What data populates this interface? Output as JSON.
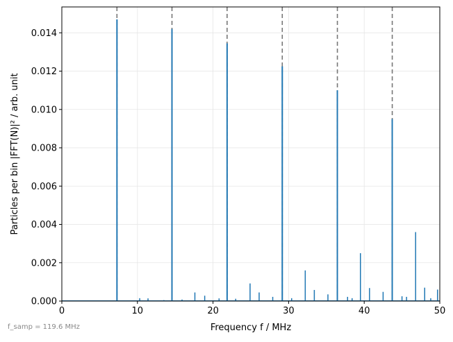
{
  "chart_data": {
    "type": "bar",
    "xlabel": "Frequency   f / MHz",
    "ylabel": "Particles per bin   |FFT(N)|² / arb. unit",
    "xlim": [
      0,
      50
    ],
    "ylim": [
      0,
      0.01535
    ],
    "xticks": [
      "0",
      "10",
      "20",
      "30",
      "40",
      "50"
    ],
    "yticks": [
      "0.000",
      "0.002",
      "0.004",
      "0.006",
      "0.008",
      "0.010",
      "0.012",
      "0.014"
    ],
    "grid": true,
    "footnote": "f_samp = 119.6 MHz",
    "colors": {
      "bars": "#1f77b4",
      "reference_lines": "#777777",
      "grid": "#e5e5e5"
    },
    "reference_lines_x": [
      7.29,
      14.57,
      21.86,
      29.16,
      36.45,
      43.71
    ],
    "series": [
      {
        "x": [
          7.29,
          10.3,
          11.4,
          13.5,
          14.57,
          15.9,
          17.6,
          18.9,
          20.8,
          21.86,
          23.0,
          24.9,
          26.1,
          27.9,
          29.16,
          30.4,
          32.2,
          33.4,
          35.2,
          36.45,
          37.8,
          38.4,
          39.5,
          40.7,
          42.5,
          43.71,
          45.0,
          45.6,
          46.8,
          48.0,
          48.8,
          49.7
        ],
        "values": [
          0.0147,
          0.00015,
          0.00014,
          5e-05,
          0.0142,
          8e-05,
          0.00045,
          0.00028,
          0.00014,
          0.01345,
          0.00012,
          0.00092,
          0.00045,
          0.00022,
          0.01225,
          0.00015,
          0.0016,
          0.00058,
          0.00035,
          0.011,
          0.00022,
          0.00015,
          0.0025,
          0.00068,
          0.00048,
          0.0095,
          0.00025,
          0.00022,
          0.0036,
          0.0007,
          0.00015,
          0.0006
        ]
      }
    ]
  }
}
